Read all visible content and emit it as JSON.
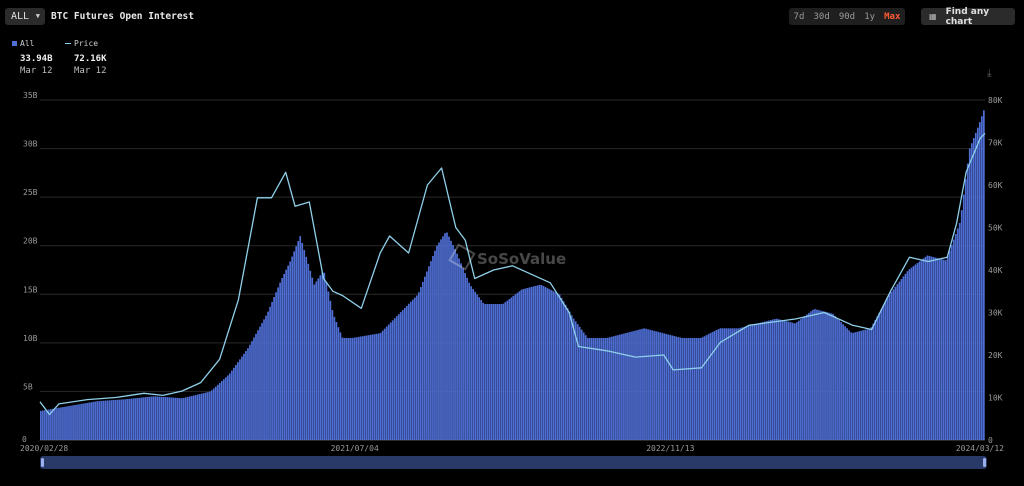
{
  "header": {
    "range_select": "ALL",
    "title": "BTC Futures Open Interest",
    "ranges": [
      "7d",
      "30d",
      "90d",
      "1y",
      "Max"
    ],
    "active_range": "Max",
    "find_button": "Find any chart"
  },
  "legend": {
    "items": [
      {
        "label": "All",
        "value": "33.94B",
        "date": "Mar 12",
        "color": "#4f6fd6"
      },
      {
        "label": "Price",
        "value": "72.16K",
        "date": "Mar 12",
        "color": "#8fd0ea"
      }
    ]
  },
  "watermark": "SoSoValue",
  "chart_data": {
    "type": "bar",
    "title": "BTC Futures Open Interest",
    "x_tick_labels": [
      "2020/02/28",
      "2021/07/04",
      "2022/11/13",
      "2024/03/12"
    ],
    "y_left_ticks": [
      "0",
      "5B",
      "10B",
      "15B",
      "20B",
      "25B",
      "30B",
      "35B"
    ],
    "y_right_ticks": [
      "0",
      "10K",
      "20K",
      "30K",
      "40K",
      "50K",
      "60K",
      "70K",
      "80K"
    ],
    "ylim_left": [
      0,
      35
    ],
    "ylim_right": [
      0,
      80
    ],
    "grid": true,
    "legend_position": "top-left",
    "series": [
      {
        "name": "All",
        "kind": "bar",
        "axis": "left",
        "unit": "B",
        "color": "#4f6fd6",
        "x": [
          0,
          0.03,
          0.06,
          0.09,
          0.12,
          0.15,
          0.18,
          0.2,
          0.22,
          0.24,
          0.255,
          0.265,
          0.275,
          0.29,
          0.3,
          0.31,
          0.32,
          0.33,
          0.36,
          0.38,
          0.4,
          0.42,
          0.43,
          0.44,
          0.455,
          0.47,
          0.49,
          0.51,
          0.53,
          0.55,
          0.565,
          0.58,
          0.6,
          0.62,
          0.64,
          0.66,
          0.68,
          0.7,
          0.72,
          0.74,
          0.76,
          0.78,
          0.8,
          0.82,
          0.84,
          0.86,
          0.88,
          0.9,
          0.92,
          0.94,
          0.96,
          0.975,
          0.985,
          0.995,
          1.0
        ],
        "values": [
          3,
          3.5,
          4,
          4.2,
          4.5,
          4.3,
          5.0,
          6.8,
          9.5,
          13.0,
          16.5,
          18.5,
          21.0,
          16.0,
          17.5,
          13.0,
          10.5,
          10.5,
          11.0,
          13.0,
          15.0,
          20.0,
          21.5,
          19.5,
          16.0,
          14.0,
          14.0,
          15.5,
          16.0,
          15.0,
          12.5,
          10.5,
          10.5,
          11.0,
          11.5,
          11.0,
          10.5,
          10.5,
          11.5,
          11.5,
          12.0,
          12.5,
          12.0,
          13.5,
          13.0,
          11.0,
          11.5,
          15.0,
          17.5,
          19.0,
          18.5,
          22.5,
          30.0,
          32.5,
          33.94
        ]
      },
      {
        "name": "Price",
        "kind": "line",
        "axis": "right",
        "unit": "K",
        "color": "#8fd0ea",
        "x": [
          0,
          0.01,
          0.02,
          0.05,
          0.08,
          0.11,
          0.13,
          0.15,
          0.17,
          0.19,
          0.21,
          0.23,
          0.245,
          0.26,
          0.27,
          0.285,
          0.3,
          0.31,
          0.32,
          0.34,
          0.36,
          0.37,
          0.39,
          0.41,
          0.425,
          0.44,
          0.45,
          0.46,
          0.48,
          0.5,
          0.52,
          0.54,
          0.56,
          0.57,
          0.6,
          0.63,
          0.66,
          0.67,
          0.7,
          0.72,
          0.75,
          0.8,
          0.83,
          0.86,
          0.88,
          0.9,
          0.92,
          0.94,
          0.96,
          0.97,
          0.98,
          0.995,
          1.0
        ],
        "values": [
          9.0,
          6.0,
          8.5,
          9.5,
          10.0,
          11.0,
          10.5,
          11.5,
          13.5,
          19.0,
          33.0,
          57.0,
          57.0,
          63.0,
          55.0,
          56.0,
          38.0,
          35.0,
          34.0,
          31.0,
          44.0,
          48.0,
          44.0,
          60.0,
          64.0,
          50.0,
          47.0,
          38.0,
          40.0,
          41.0,
          39.0,
          37.0,
          30.0,
          22.0,
          21.0,
          19.5,
          20.0,
          16.5,
          17.0,
          23.0,
          27.0,
          28.5,
          30.0,
          27.0,
          26.0,
          35.0,
          43.0,
          42.0,
          43.0,
          51.0,
          63.0,
          71.0,
          72.16
        ]
      }
    ]
  }
}
